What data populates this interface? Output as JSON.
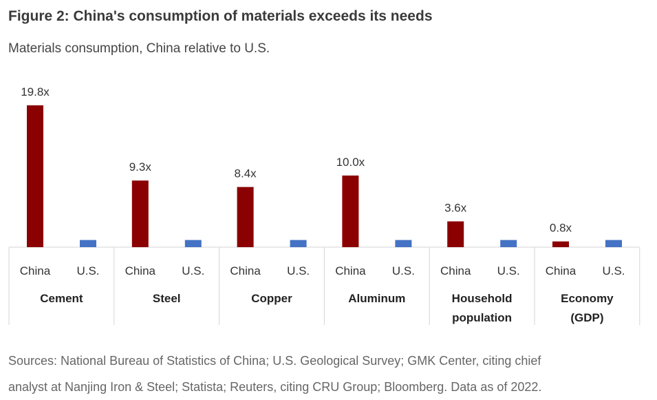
{
  "title": "Figure 2: China's consumption of materials exceeds its needs",
  "subtitle": "Materials consumption, China relative to U.S.",
  "source_lines": [
    "Sources: National Bureau of Statistics of China; U.S. Geological Survey; GMK Center, citing chief",
    "analyst at Nanjing Iron & Steel; Statista; Reuters, citing CRU Group; Bloomberg. Data as of 2022."
  ],
  "colors": {
    "china": "#8b0000",
    "us": "#4472c4",
    "grid": "#d4d4d4"
  },
  "chart_data": {
    "type": "bar",
    "groups": [
      {
        "lines": [
          "Cement"
        ],
        "china": 19.8,
        "china_label": "19.8x",
        "us": 1.0
      },
      {
        "lines": [
          "Steel"
        ],
        "china": 9.3,
        "china_label": "9.3x",
        "us": 1.0
      },
      {
        "lines": [
          "Copper"
        ],
        "china": 8.4,
        "china_label": "8.4x",
        "us": 1.0
      },
      {
        "lines": [
          "Aluminum"
        ],
        "china": 10.0,
        "china_label": "10.0x",
        "us": 1.0
      },
      {
        "lines": [
          "Household",
          "population"
        ],
        "china": 3.6,
        "china_label": "3.6x",
        "us": 1.0
      },
      {
        "lines": [
          "Economy",
          "(GDP)"
        ],
        "china": 0.8,
        "china_label": "0.8x",
        "us": 1.0
      }
    ],
    "bar_labels": [
      "China",
      "U.S."
    ],
    "ylim": [
      0,
      19.8
    ],
    "grid": false,
    "legend": "none"
  }
}
